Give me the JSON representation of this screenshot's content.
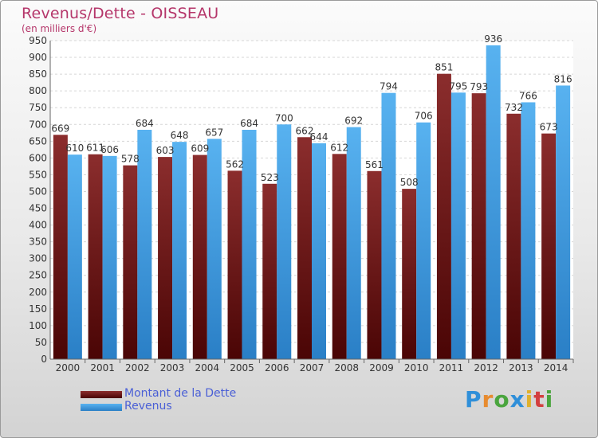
{
  "header": {
    "title": "Revenus/Dette - OISSEAU",
    "subtitle": "(en milliers d'€)"
  },
  "legend": {
    "items": [
      {
        "label": "Montant de la Dette",
        "color": "#7b1c1c"
      },
      {
        "label": "Revenus",
        "color": "#3d9ee6"
      }
    ]
  },
  "logo": {
    "text": "Proxiti",
    "letters": [
      "P",
      "r",
      "o",
      "x",
      "i",
      "t",
      "i"
    ],
    "colors": [
      "#2f8fd9",
      "#e78b2f",
      "#4aa53e",
      "#2f8fd9",
      "#e0b12c",
      "#d33f3f",
      "#4aa53e"
    ]
  },
  "chart_data": {
    "type": "bar",
    "categories": [
      "2000",
      "2001",
      "2002",
      "2003",
      "2004",
      "2005",
      "2006",
      "2007",
      "2008",
      "2009",
      "2010",
      "2011",
      "2012",
      "2013",
      "2014"
    ],
    "series": [
      {
        "name": "Montant de la Dette",
        "color": "#7b1c1c",
        "values": [
          669,
          611,
          578,
          603,
          609,
          562,
          523,
          662,
          612,
          561,
          508,
          851,
          793,
          732,
          673
        ]
      },
      {
        "name": "Revenus",
        "color": "#3d9ee6",
        "values": [
          610,
          606,
          684,
          648,
          657,
          684,
          700,
          644,
          692,
          794,
          706,
          795,
          936,
          766,
          816
        ]
      }
    ],
    "ylim": [
      0,
      950
    ],
    "ytick_step": 50,
    "grid": true,
    "legend_position": "bottom-left"
  }
}
